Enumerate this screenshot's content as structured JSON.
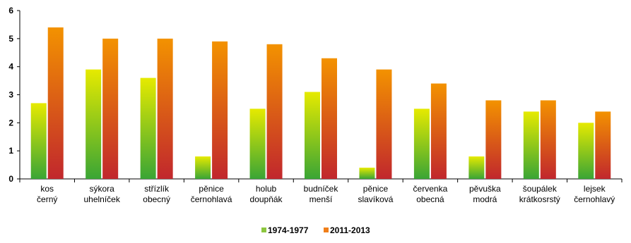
{
  "chart_data": {
    "type": "bar",
    "title": "",
    "xlabel": "",
    "ylabel": "",
    "ylim": [
      0,
      6
    ],
    "yticks": [
      "0",
      "1",
      "2",
      "3",
      "4",
      "5",
      "6"
    ],
    "grid": false,
    "legend_position": "bottom",
    "categories": [
      [
        "kos",
        "černý"
      ],
      [
        "sýkora",
        "uhelníček"
      ],
      [
        "střízlík",
        "obecný"
      ],
      [
        "pěnice",
        "černohlavá"
      ],
      [
        "holub",
        "doupňák"
      ],
      [
        "budníček",
        "menší"
      ],
      [
        "pěnice",
        "slavíková"
      ],
      [
        "červenka",
        "obecná"
      ],
      [
        "pěvuška",
        "modrá"
      ],
      [
        "šoupálek",
        "krátkosrstý"
      ],
      [
        "lejsek",
        "černohlavý"
      ]
    ],
    "series": [
      {
        "name": "1974-1977",
        "color_top": "#e6ea00",
        "color_bottom": "#3aa535",
        "legend_color": "#8cc63f",
        "values": [
          2.7,
          3.9,
          3.6,
          0.8,
          2.5,
          3.1,
          0.4,
          2.5,
          0.8,
          2.4,
          2.0
        ]
      },
      {
        "name": "2011-2013",
        "color_top": "#f39200",
        "color_bottom": "#c1272d",
        "legend_color": "#f07f1a",
        "values": [
          5.4,
          5.0,
          5.0,
          4.9,
          4.8,
          4.3,
          3.9,
          3.4,
          2.8,
          2.8,
          2.4
        ]
      }
    ]
  }
}
